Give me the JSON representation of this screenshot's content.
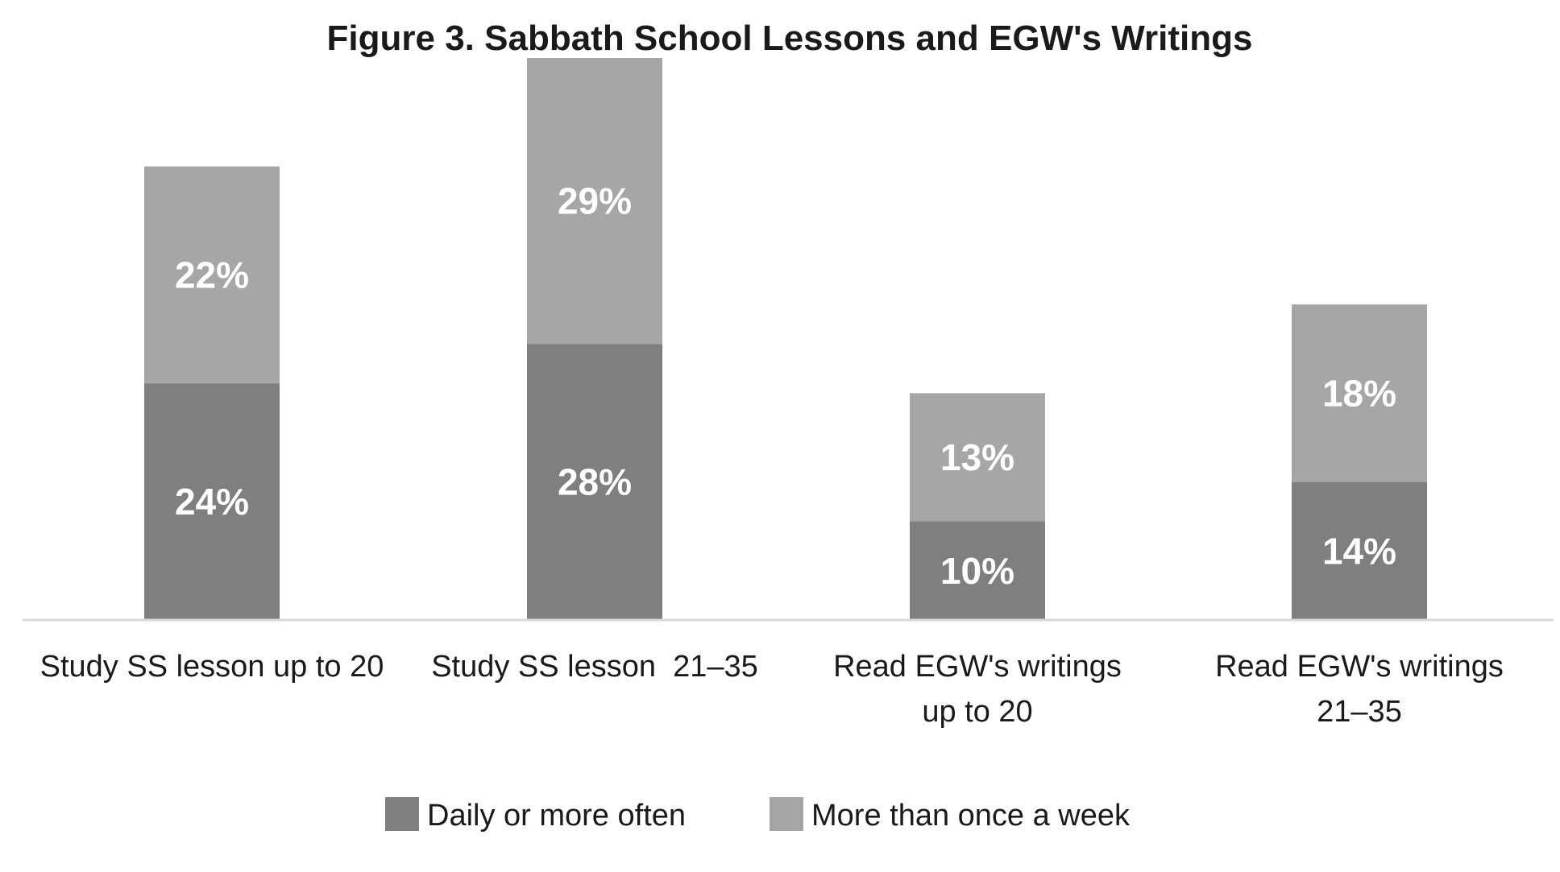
{
  "chart_data": {
    "type": "bar",
    "stacked": true,
    "title": "Figure 3. Sabbath School Lessons and EGW's Writings",
    "xlabel": "",
    "ylabel": "",
    "ylim": [
      0,
      57
    ],
    "grid": false,
    "legend_position": "bottom-center",
    "value_suffix": "%",
    "categories": [
      [
        "Study SS lesson up to 20"
      ],
      [
        "Study SS lesson  21–35"
      ],
      [
        "Read EGW's writings",
        "up to 20"
      ],
      [
        "Read EGW's writings",
        "21–35"
      ]
    ],
    "series": [
      {
        "name": "Daily or more often",
        "color": "#7f7f7f",
        "values": [
          24,
          28,
          10,
          14
        ]
      },
      {
        "name": "More than once a week",
        "color": "#a6a6a6",
        "values": [
          22,
          29,
          13,
          18
        ]
      }
    ]
  },
  "colors": {
    "background": "#ffffff",
    "axis_line": "#d9d9d9",
    "title_text": "#1a1a1a",
    "label_text": "#1a1a1a",
    "data_label_text": "#ffffff"
  }
}
